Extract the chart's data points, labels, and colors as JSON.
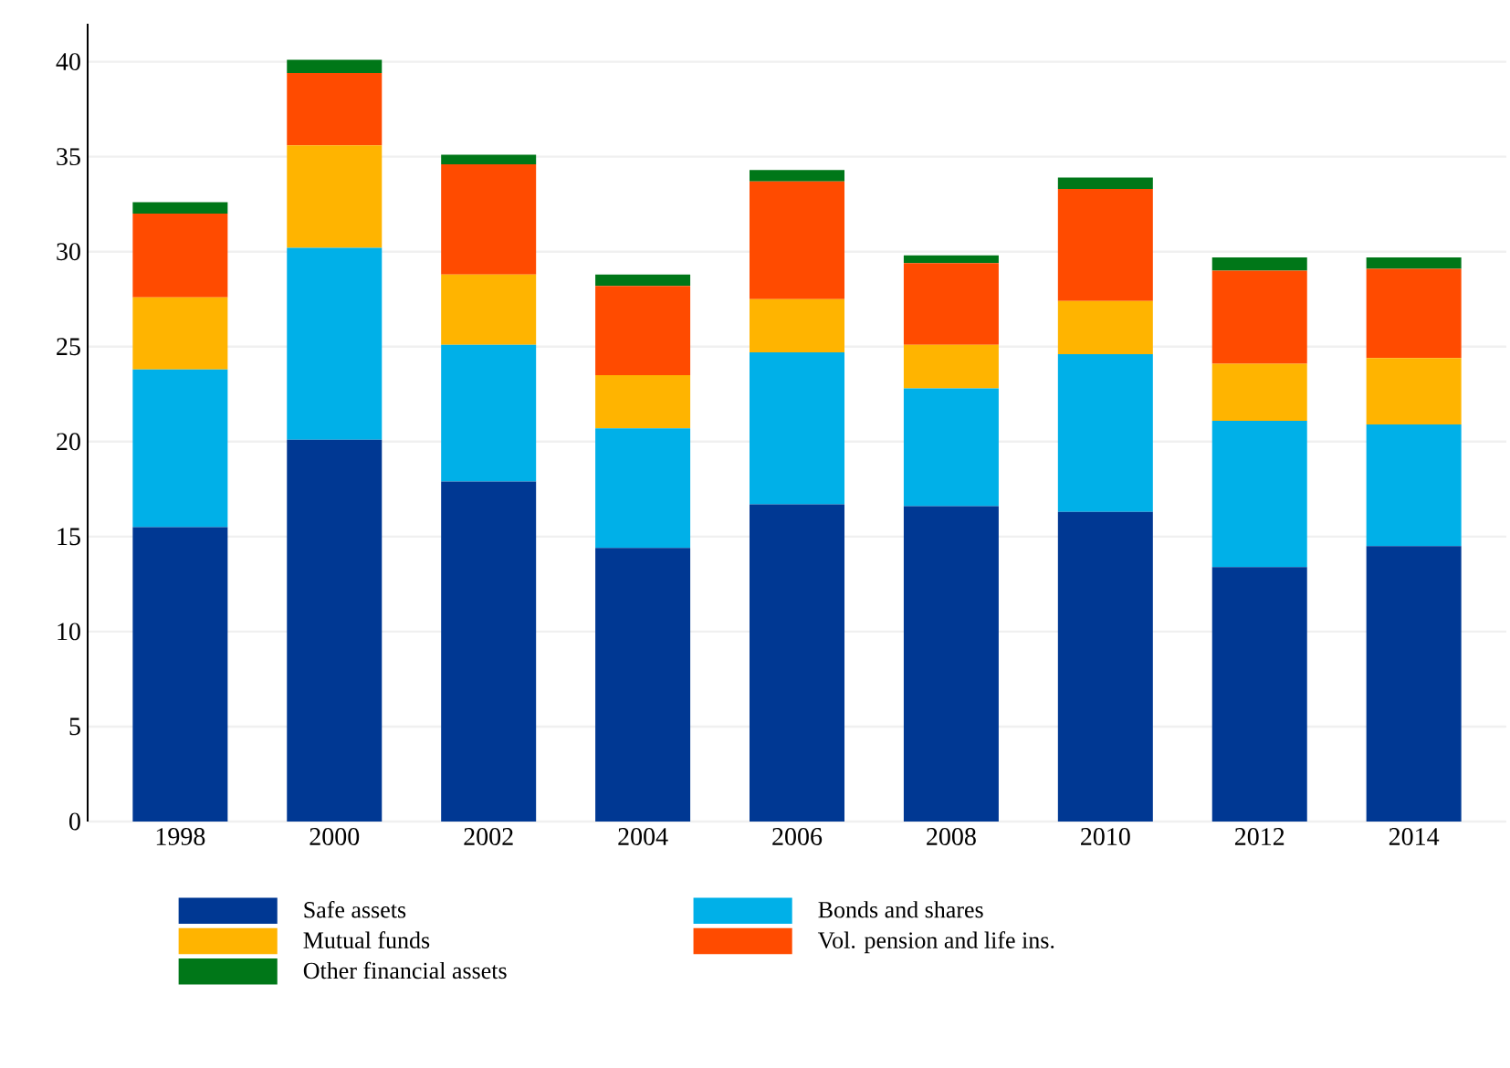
{
  "chart_data": {
    "type": "bar",
    "stacked": true,
    "categories": [
      "1998",
      "2000",
      "2002",
      "2004",
      "2006",
      "2008",
      "2010",
      "2012",
      "2014"
    ],
    "series": [
      {
        "name": "Safe assets",
        "color": "#003893",
        "values": [
          15.5,
          20.1,
          17.9,
          14.4,
          16.7,
          16.6,
          16.3,
          13.4,
          14.5
        ]
      },
      {
        "name": "Bonds and shares",
        "color": "#00b0e8",
        "values": [
          8.3,
          10.1,
          7.2,
          6.3,
          8.0,
          6.2,
          8.3,
          7.7,
          6.4
        ]
      },
      {
        "name": "Mutual funds",
        "color": "#ffb400",
        "values": [
          3.8,
          5.4,
          3.7,
          2.8,
          2.8,
          2.3,
          2.8,
          3.0,
          3.5
        ]
      },
      {
        "name": "Vol. pension and life ins.",
        "color": "#ff4b00",
        "values": [
          4.4,
          3.8,
          5.8,
          4.7,
          6.2,
          4.3,
          5.9,
          4.9,
          4.7
        ]
      },
      {
        "name": "Other financial assets",
        "color": "#007718",
        "values": [
          0.6,
          0.7,
          0.5,
          0.6,
          0.6,
          0.4,
          0.6,
          0.7,
          0.6
        ]
      }
    ],
    "ylim": [
      0,
      42
    ],
    "yticks": [
      0,
      5,
      10,
      15,
      20,
      25,
      30,
      35,
      40
    ],
    "grid": "y",
    "legend": "bottom"
  }
}
